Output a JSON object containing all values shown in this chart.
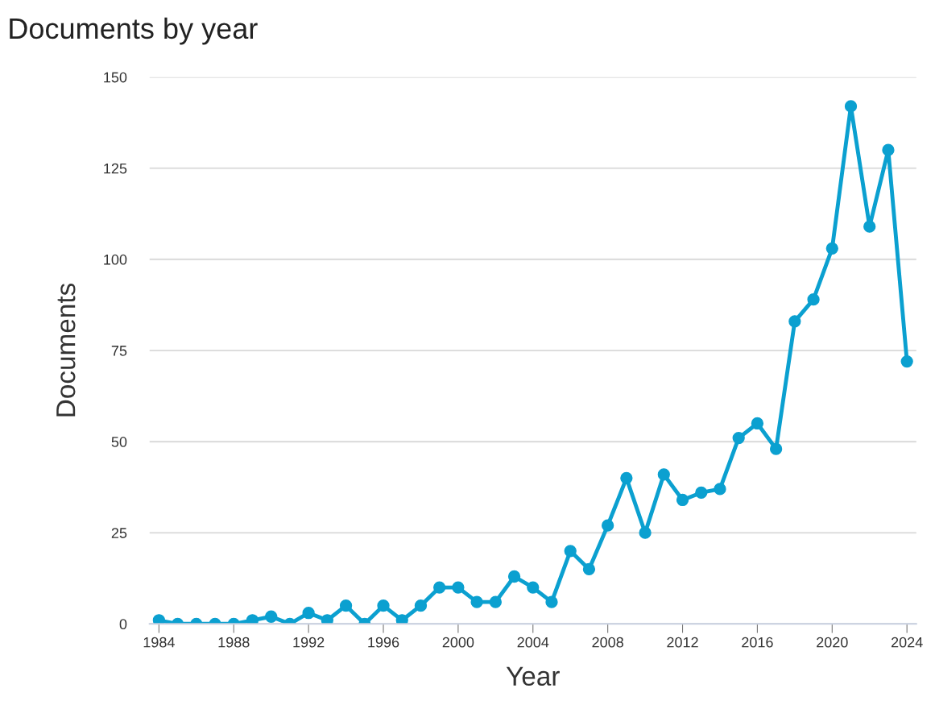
{
  "chart_data": {
    "type": "line",
    "title": "Documents by year",
    "xlabel": "Year",
    "ylabel": "Documents",
    "x": [
      1984,
      1985,
      1986,
      1987,
      1988,
      1989,
      1990,
      1991,
      1992,
      1993,
      1994,
      1995,
      1996,
      1997,
      1998,
      1999,
      2000,
      2001,
      2002,
      2003,
      2004,
      2005,
      2006,
      2007,
      2008,
      2009,
      2010,
      2011,
      2012,
      2013,
      2014,
      2015,
      2016,
      2017,
      2018,
      2019,
      2020,
      2021,
      2022,
      2023,
      2024
    ],
    "series": [
      {
        "color": "#0ba0d0",
        "values": [
          1,
          0,
          0,
          0,
          0,
          1,
          2,
          0,
          3,
          1,
          5,
          0,
          5,
          1,
          5,
          10,
          10,
          6,
          6,
          13,
          10,
          6,
          20,
          15,
          27,
          40,
          25,
          41,
          34,
          36,
          37,
          51,
          55,
          48,
          83,
          89,
          103,
          142,
          109,
          130,
          72
        ]
      }
    ],
    "xlim": [
      1983.5,
      2024.5
    ],
    "xticks": [
      1984,
      1988,
      1992,
      1996,
      2000,
      2004,
      2008,
      2012,
      2016,
      2020,
      2024
    ],
    "ylim": [
      0,
      150
    ],
    "yticks": [
      0,
      25,
      50,
      75,
      100,
      125,
      150
    ],
    "grid": "y",
    "marker": "circle",
    "line_style": "solid",
    "legend": false
  }
}
